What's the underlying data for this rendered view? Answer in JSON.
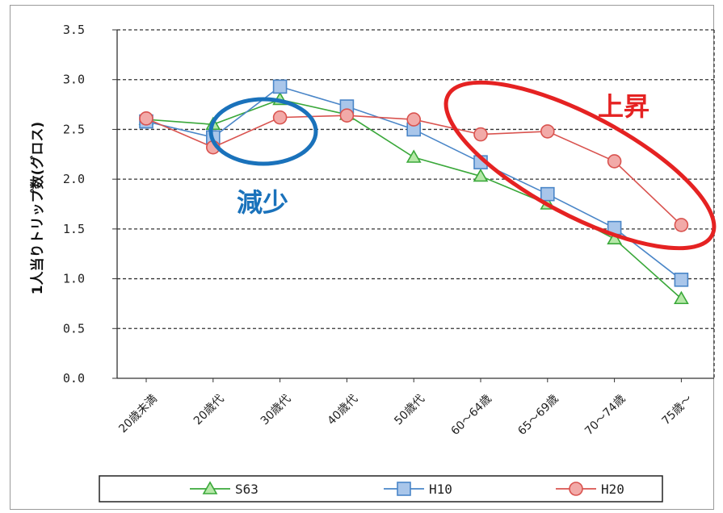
{
  "chart_data": {
    "type": "line",
    "ylabel": "1人当りトリップ数(グロス)",
    "ylim": [
      0.0,
      3.5
    ],
    "yticks": [
      "0.0",
      "0.5",
      "1.0",
      "1.5",
      "2.0",
      "2.5",
      "3.0",
      "3.5"
    ],
    "categories": [
      "20歳未満",
      "20歳代",
      "30歳代",
      "40歳代",
      "50歳代",
      "60～64歳",
      "65～69歳",
      "70～74歳",
      "75歳～"
    ],
    "grid": "horizontal-dashed",
    "legend_position": "bottom",
    "series": [
      {
        "name": "S63",
        "legend_label": "S63",
        "marker": "triangle",
        "color": "#3aa83a",
        "fill": "#b6e8a8",
        "values": [
          2.6,
          2.55,
          2.8,
          2.65,
          2.22,
          2.03,
          1.75,
          1.4,
          0.8
        ]
      },
      {
        "name": "H10",
        "legend_label": "H10",
        "marker": "square",
        "color": "#4a86c8",
        "fill": "#a9c6ea",
        "values": [
          2.58,
          2.42,
          2.93,
          2.73,
          2.5,
          2.17,
          1.85,
          1.51,
          0.99
        ]
      },
      {
        "name": "H20",
        "legend_label": "H20",
        "marker": "circle",
        "color": "#d9534f",
        "fill": "#f2aaa8",
        "values": [
          2.61,
          2.32,
          2.62,
          2.64,
          2.6,
          2.45,
          2.48,
          2.18,
          1.54
        ]
      }
    ],
    "annotations": [
      {
        "text": "減少",
        "color": "#1a72bb"
      },
      {
        "text": "上昇",
        "color": "#e52222"
      }
    ]
  }
}
